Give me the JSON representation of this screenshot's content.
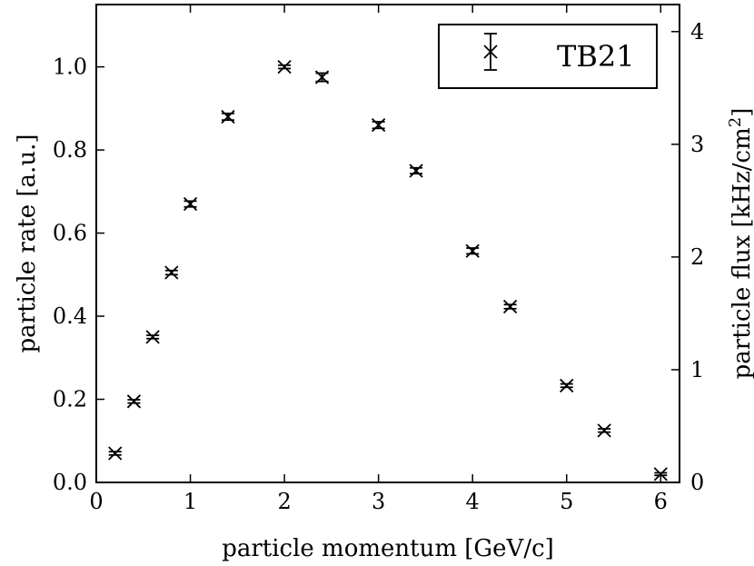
{
  "chart_data": {
    "type": "scatter",
    "xlabel": "particle momentum [GeV/c]",
    "ylabel": "particle rate [a.u.]",
    "y2label_main": "particle flux [kHz/cm",
    "y2label_sup": "2",
    "y2label_end": "]",
    "xlim": [
      0,
      6.2
    ],
    "ylim": [
      0,
      1.15
    ],
    "y2lim": [
      0,
      4.24
    ],
    "xticks": [
      0,
      1,
      2,
      3,
      4,
      5,
      6
    ],
    "yticks": [
      0.0,
      0.2,
      0.4,
      0.6,
      0.8,
      1.0
    ],
    "y2ticks": [
      0,
      1,
      2,
      3,
      4
    ],
    "xtick_labels": [
      "0",
      "1",
      "2",
      "3",
      "4",
      "5",
      "6"
    ],
    "ytick_labels": [
      "0.0",
      "0.2",
      "0.4",
      "0.6",
      "0.8",
      "1.0"
    ],
    "y2tick_labels": [
      "0",
      "1",
      "2",
      "3",
      "4"
    ],
    "grid": false,
    "legend_position": "top-right",
    "series": [
      {
        "name": "TB21",
        "marker": "x",
        "color": "#000000",
        "x": [
          0.2,
          0.4,
          0.6,
          0.8,
          1.0,
          1.4,
          2.0,
          2.4,
          3.0,
          3.4,
          4.0,
          4.4,
          5.0,
          5.4,
          6.0
        ],
        "y": [
          0.07,
          0.195,
          0.35,
          0.505,
          0.67,
          0.88,
          1.0,
          0.975,
          0.86,
          0.75,
          0.557,
          0.423,
          0.233,
          0.125,
          0.02
        ],
        "yerr": [
          0.004,
          0.004,
          0.004,
          0.005,
          0.007,
          0.008,
          0.004,
          0.01,
          0.008,
          0.007,
          0.007,
          0.005,
          0.004,
          0.004,
          0.003
        ]
      }
    ]
  }
}
